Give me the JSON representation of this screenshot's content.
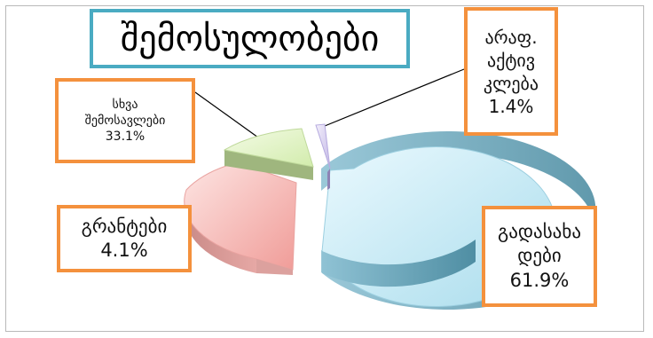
{
  "chart_data": {
    "type": "pie",
    "title": "შემოსულობები",
    "slices": [
      {
        "label_lines": [
          "გადასახა",
          "დები"
        ],
        "percent_text": "61.9%",
        "value": 61.9,
        "color": "#bfe9f7"
      },
      {
        "label_lines": [
          "სხვა",
          "შემოსავლები"
        ],
        "percent_text": "33.1%",
        "value": 33.1,
        "color": "#f5b7b4"
      },
      {
        "label_lines": [
          "გრანტები"
        ],
        "percent_text": "4.1%",
        "value": 4.1,
        "color": "#def3bf"
      },
      {
        "label_lines": [
          "არაფ.",
          "აქტივ",
          "კლება"
        ],
        "percent_text": "1.4%",
        "value": 1.4,
        "color": "#d9d2f0"
      }
    ]
  },
  "colors": {
    "title_border": "#4aabc2",
    "label_border": "#f4913d"
  }
}
